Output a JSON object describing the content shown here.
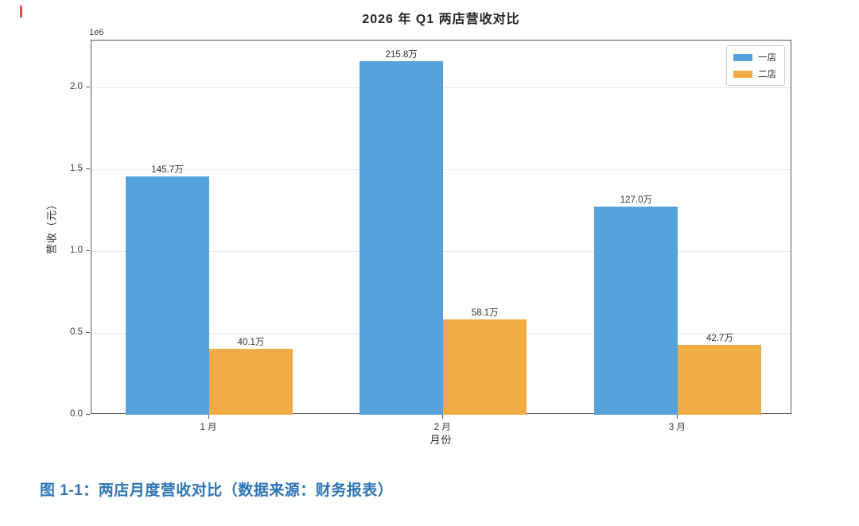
{
  "chart_data": {
    "type": "bar",
    "title": "2026 年 Q1 两店营收对比",
    "xlabel": "月份",
    "ylabel": "营收（元）",
    "y_offset_text": "1e6",
    "categories": [
      "1 月",
      "2 月",
      "3 月"
    ],
    "series": [
      {
        "name": "一店",
        "color": "#56A3DC",
        "values": [
          1457000,
          2158000,
          1270000
        ],
        "value_labels": [
          "145.7万",
          "215.8万",
          "127.0万"
        ]
      },
      {
        "name": "二店",
        "color": "#F2AC46",
        "values": [
          401000,
          581000,
          427000
        ],
        "value_labels": [
          "40.1万",
          "58.1万",
          "42.7万"
        ]
      }
    ],
    "y_ticks": [
      {
        "label": "0.0",
        "value": 0
      },
      {
        "label": "0.5",
        "value": 500000
      },
      {
        "label": "1.0",
        "value": 1000000
      },
      {
        "label": "1.5",
        "value": 1500000
      },
      {
        "label": "2.0",
        "value": 2000000
      }
    ],
    "ylim": [
      0,
      2286000
    ],
    "grid": true,
    "legend_position": "upper right"
  },
  "caption": {
    "text": "图 1-1：两店月度营收对比（数据来源：财务报表）",
    "color": "#2E74B5"
  }
}
